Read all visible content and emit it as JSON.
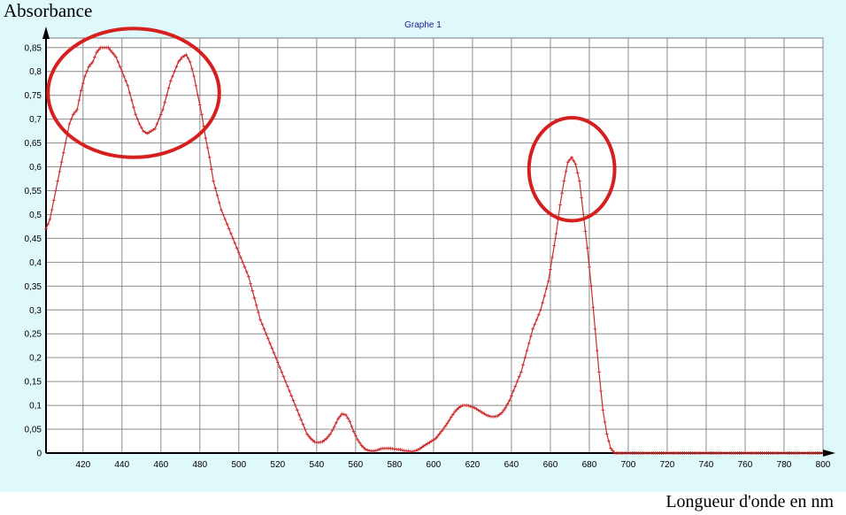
{
  "chart_data": {
    "type": "line",
    "title": "Graphe 1",
    "ylabel": "Absorbance",
    "xlabel": "Longueur d'onde en nm",
    "xlim": [
      401,
      800
    ],
    "ylim": [
      0,
      0.87
    ],
    "x_ticks": [
      "420",
      "440",
      "460",
      "480",
      "500",
      "520",
      "540",
      "560",
      "580",
      "600",
      "620",
      "640",
      "660",
      "680",
      "700",
      "720",
      "740",
      "760",
      "780",
      "800"
    ],
    "y_ticks": [
      "0",
      "0,05",
      "0,1",
      "0,15",
      "0,2",
      "0,25",
      "0,3",
      "0,35",
      "0,4",
      "0,45",
      "0,5",
      "0,55",
      "0,6",
      "0,65",
      "0,7",
      "0,75",
      "0,8",
      "0,85"
    ],
    "grid": true,
    "series": [
      {
        "color": "#cc2a2a",
        "x": [
          401,
          403,
          405,
          407,
          409,
          411,
          413,
          415,
          417,
          419,
          421,
          423,
          425,
          427,
          429,
          431,
          433,
          435,
          437,
          439,
          441,
          443,
          445,
          447,
          449,
          451,
          453,
          455,
          457,
          459,
          461,
          463,
          465,
          467,
          469,
          471,
          473,
          475,
          477,
          479,
          481,
          483,
          485,
          487,
          489,
          491,
          493,
          495,
          497,
          499,
          501,
          503,
          505,
          507,
          509,
          511,
          513,
          515,
          517,
          519,
          521,
          523,
          525,
          527,
          529,
          531,
          533,
          535,
          537,
          539,
          541,
          543,
          545,
          547,
          549,
          551,
          553,
          555,
          557,
          559,
          561,
          563,
          565,
          567,
          569,
          571,
          573,
          575,
          577,
          579,
          581,
          583,
          585,
          587,
          589,
          591,
          593,
          595,
          597,
          599,
          601,
          603,
          605,
          607,
          609,
          611,
          613,
          615,
          617,
          619,
          621,
          623,
          625,
          627,
          629,
          631,
          633,
          635,
          637,
          639,
          641,
          643,
          645,
          647,
          649,
          651,
          653,
          655,
          657,
          659,
          661,
          663,
          665,
          667,
          669,
          671,
          673,
          675,
          677,
          679,
          681,
          683,
          685,
          687,
          689,
          691,
          693,
          695,
          700,
          710,
          720,
          730,
          740,
          750,
          760,
          770,
          780,
          790,
          800
        ],
        "values": [
          0.47,
          0.49,
          0.53,
          0.57,
          0.61,
          0.65,
          0.69,
          0.71,
          0.72,
          0.76,
          0.79,
          0.81,
          0.82,
          0.84,
          0.85,
          0.85,
          0.85,
          0.84,
          0.83,
          0.81,
          0.79,
          0.77,
          0.74,
          0.71,
          0.69,
          0.675,
          0.67,
          0.675,
          0.68,
          0.7,
          0.72,
          0.75,
          0.78,
          0.8,
          0.82,
          0.83,
          0.835,
          0.82,
          0.79,
          0.75,
          0.71,
          0.66,
          0.62,
          0.57,
          0.54,
          0.51,
          0.49,
          0.47,
          0.45,
          0.43,
          0.41,
          0.39,
          0.37,
          0.34,
          0.31,
          0.28,
          0.26,
          0.24,
          0.22,
          0.2,
          0.18,
          0.16,
          0.14,
          0.12,
          0.1,
          0.08,
          0.06,
          0.04,
          0.03,
          0.023,
          0.022,
          0.024,
          0.03,
          0.04,
          0.055,
          0.072,
          0.082,
          0.08,
          0.066,
          0.045,
          0.028,
          0.016,
          0.008,
          0.005,
          0.004,
          0.006,
          0.009,
          0.01,
          0.01,
          0.009,
          0.008,
          0.007,
          0.005,
          0.004,
          0.003,
          0.005,
          0.009,
          0.015,
          0.02,
          0.025,
          0.03,
          0.04,
          0.05,
          0.062,
          0.075,
          0.087,
          0.095,
          0.1,
          0.1,
          0.098,
          0.095,
          0.09,
          0.085,
          0.08,
          0.077,
          0.076,
          0.078,
          0.084,
          0.095,
          0.11,
          0.13,
          0.15,
          0.17,
          0.2,
          0.23,
          0.26,
          0.28,
          0.3,
          0.33,
          0.36,
          0.41,
          0.46,
          0.52,
          0.57,
          0.61,
          0.62,
          0.605,
          0.57,
          0.5,
          0.43,
          0.35,
          0.26,
          0.17,
          0.09,
          0.04,
          0.01,
          0,
          0,
          0,
          0,
          0,
          0,
          0,
          0,
          0,
          0,
          0,
          0,
          0
        ]
      }
    ],
    "annotations": [
      {
        "shape": "ellipse",
        "color": "#d62020",
        "x_center": 446,
        "y_center": 0.755,
        "x_radius": 44,
        "y_radius": 0.135
      },
      {
        "shape": "ellipse",
        "color": "#d62020",
        "x_center": 671,
        "y_center": 0.595,
        "x_radius": 22,
        "y_radius": 0.108
      }
    ]
  }
}
